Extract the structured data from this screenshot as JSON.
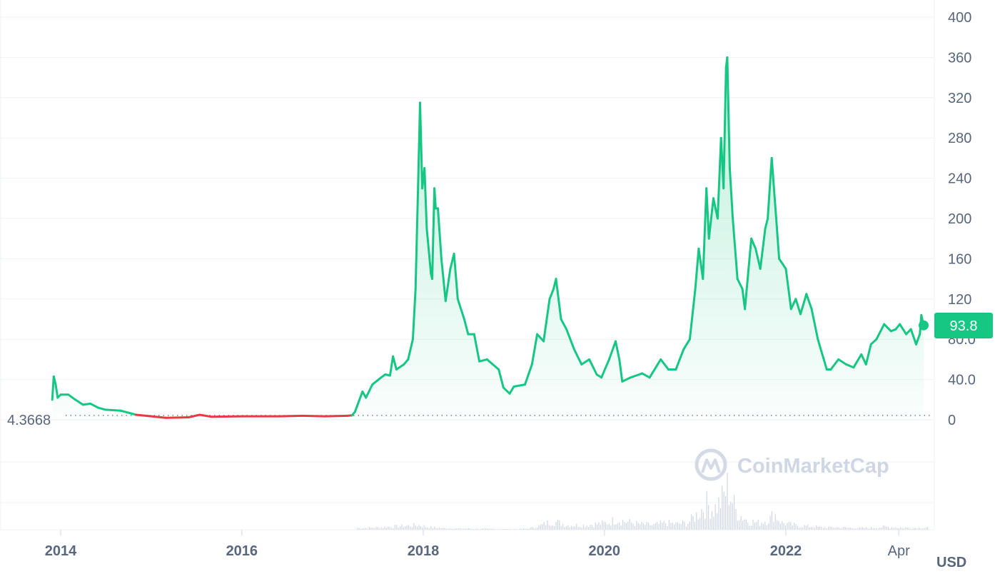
{
  "chart_data": {
    "type": "area",
    "y_unit": "USD",
    "ylim": [
      0,
      400
    ],
    "y_ticks": [
      "0",
      "40.0",
      "80.0",
      "120",
      "160",
      "200",
      "240",
      "280",
      "320",
      "360",
      "400"
    ],
    "x_ticks": [
      "2014",
      "2016",
      "2018",
      "2020",
      "2022",
      "Apr"
    ],
    "grid": true,
    "current_price_label": "93.8",
    "current_price": 93.8,
    "baseline_label": "4.3668",
    "baseline_value": 4.3668,
    "watermark": "CoinMarketCap",
    "colors": {
      "up_line": "#16c784",
      "down_line": "#ea3943",
      "area_top": "#16c784",
      "volume_bar": "#cfd6e4",
      "grid": "#eff2f5",
      "axis_text": "#58667e"
    },
    "price_series": [
      [
        "2013-11-28",
        20
      ],
      [
        "2013-12-04",
        43
      ],
      [
        "2013-12-12",
        35
      ],
      [
        "2013-12-20",
        22
      ],
      [
        "2014-01-01",
        25
      ],
      [
        "2014-02-01",
        25
      ],
      [
        "2014-03-01",
        20
      ],
      [
        "2014-04-01",
        15
      ],
      [
        "2014-05-01",
        16
      ],
      [
        "2014-06-01",
        12
      ],
      [
        "2014-07-01",
        10
      ],
      [
        "2014-09-01",
        9
      ],
      [
        "2014-11-01",
        5
      ],
      [
        "2015-01-01",
        3.5
      ],
      [
        "2015-03-01",
        2
      ],
      [
        "2015-06-01",
        2.5
      ],
      [
        "2015-07-15",
        5
      ],
      [
        "2015-09-01",
        3
      ],
      [
        "2016-01-01",
        3.5
      ],
      [
        "2016-06-01",
        3.5
      ],
      [
        "2016-09-01",
        4
      ],
      [
        "2016-12-01",
        3.5
      ],
      [
        "2017-03-01",
        4
      ],
      [
        "2017-03-20",
        4.4
      ],
      [
        "2017-04-01",
        8
      ],
      [
        "2017-05-01",
        28
      ],
      [
        "2017-05-15",
        22
      ],
      [
        "2017-06-10",
        35
      ],
      [
        "2017-07-15",
        42
      ],
      [
        "2017-08-01",
        45
      ],
      [
        "2017-08-20",
        44
      ],
      [
        "2017-09-01",
        63
      ],
      [
        "2017-09-15",
        50
      ],
      [
        "2017-10-15",
        55
      ],
      [
        "2017-11-01",
        60
      ],
      [
        "2017-11-20",
        80
      ],
      [
        "2017-12-01",
        130
      ],
      [
        "2017-12-12",
        240
      ],
      [
        "2017-12-19",
        315
      ],
      [
        "2017-12-28",
        230
      ],
      [
        "2018-01-06",
        250
      ],
      [
        "2018-01-15",
        190
      ],
      [
        "2018-02-01",
        145
      ],
      [
        "2018-02-06",
        140
      ],
      [
        "2018-02-15",
        230
      ],
      [
        "2018-02-20",
        210
      ],
      [
        "2018-03-01",
        210
      ],
      [
        "2018-03-15",
        160
      ],
      [
        "2018-04-01",
        118
      ],
      [
        "2018-04-20",
        150
      ],
      [
        "2018-05-05",
        165
      ],
      [
        "2018-05-20",
        120
      ],
      [
        "2018-06-15",
        100
      ],
      [
        "2018-07-01",
        85
      ],
      [
        "2018-07-25",
        85
      ],
      [
        "2018-08-15",
        58
      ],
      [
        "2018-09-15",
        60
      ],
      [
        "2018-11-01",
        50
      ],
      [
        "2018-11-20",
        32
      ],
      [
        "2018-12-15",
        26
      ],
      [
        "2019-01-01",
        33
      ],
      [
        "2019-02-15",
        35
      ],
      [
        "2019-03-15",
        55
      ],
      [
        "2019-04-05",
        85
      ],
      [
        "2019-05-01",
        78
      ],
      [
        "2019-05-25",
        120
      ],
      [
        "2019-06-10",
        130
      ],
      [
        "2019-06-20",
        140
      ],
      [
        "2019-07-10",
        100
      ],
      [
        "2019-08-01",
        90
      ],
      [
        "2019-09-01",
        70
      ],
      [
        "2019-10-01",
        55
      ],
      [
        "2019-11-01",
        60
      ],
      [
        "2019-12-01",
        45
      ],
      [
        "2019-12-20",
        42
      ],
      [
        "2020-01-20",
        60
      ],
      [
        "2020-02-15",
        78
      ],
      [
        "2020-03-01",
        60
      ],
      [
        "2020-03-13",
        38
      ],
      [
        "2020-04-15",
        42
      ],
      [
        "2020-06-01",
        46
      ],
      [
        "2020-07-01",
        42
      ],
      [
        "2020-08-15",
        60
      ],
      [
        "2020-09-15",
        50
      ],
      [
        "2020-10-15",
        50
      ],
      [
        "2020-11-15",
        70
      ],
      [
        "2020-12-10",
        80
      ],
      [
        "2021-01-01",
        130
      ],
      [
        "2021-01-15",
        170
      ],
      [
        "2021-02-01",
        140
      ],
      [
        "2021-02-15",
        230
      ],
      [
        "2021-02-25",
        180
      ],
      [
        "2021-03-15",
        220
      ],
      [
        "2021-04-01",
        200
      ],
      [
        "2021-04-15",
        280
      ],
      [
        "2021-04-25",
        230
      ],
      [
        "2021-05-05",
        350
      ],
      [
        "2021-05-10",
        360
      ],
      [
        "2021-05-20",
        250
      ],
      [
        "2021-06-01",
        200
      ],
      [
        "2021-06-20",
        140
      ],
      [
        "2021-07-10",
        130
      ],
      [
        "2021-07-20",
        110
      ],
      [
        "2021-08-15",
        180
      ],
      [
        "2021-09-01",
        170
      ],
      [
        "2021-09-20",
        150
      ],
      [
        "2021-10-10",
        190
      ],
      [
        "2021-10-20",
        200
      ],
      [
        "2021-11-05",
        260
      ],
      [
        "2021-11-20",
        210
      ],
      [
        "2021-12-05",
        160
      ],
      [
        "2022-01-01",
        150
      ],
      [
        "2022-01-22",
        110
      ],
      [
        "2022-02-10",
        120
      ],
      [
        "2022-03-01",
        105
      ],
      [
        "2022-03-25",
        125
      ],
      [
        "2022-04-15",
        110
      ],
      [
        "2022-05-10",
        80
      ],
      [
        "2022-06-15",
        50
      ],
      [
        "2022-07-01",
        50
      ],
      [
        "2022-08-01",
        60
      ],
      [
        "2022-09-01",
        55
      ],
      [
        "2022-10-01",
        52
      ],
      [
        "2022-11-01",
        65
      ],
      [
        "2022-11-20",
        55
      ],
      [
        "2022-12-10",
        75
      ],
      [
        "2023-01-01",
        80
      ],
      [
        "2023-02-01",
        95
      ],
      [
        "2023-03-01",
        88
      ],
      [
        "2023-03-20",
        90
      ],
      [
        "2023-04-05",
        95
      ],
      [
        "2023-05-01",
        85
      ],
      [
        "2023-05-20",
        90
      ],
      [
        "2023-06-10",
        75
      ],
      [
        "2023-06-25",
        85
      ],
      [
        "2023-07-01",
        104
      ],
      [
        "2023-07-10",
        93.8
      ]
    ],
    "volume_series": [
      [
        "2017-05-15",
        3
      ],
      [
        "2017-12-15",
        8
      ],
      [
        "2018-01-15",
        5
      ],
      [
        "2018-03-01",
        3
      ],
      [
        "2018-06-01",
        2
      ],
      [
        "2019-01-01",
        1
      ],
      [
        "2019-03-01",
        2
      ],
      [
        "2019-04-15",
        7
      ],
      [
        "2019-06-01",
        15
      ],
      [
        "2019-07-01",
        12
      ],
      [
        "2019-08-01",
        8
      ],
      [
        "2019-10-01",
        8
      ],
      [
        "2019-12-01",
        10
      ],
      [
        "2020-01-15",
        12
      ],
      [
        "2020-02-15",
        18
      ],
      [
        "2020-03-15",
        15
      ],
      [
        "2020-05-15",
        10
      ],
      [
        "2020-07-15",
        8
      ],
      [
        "2020-09-01",
        12
      ],
      [
        "2020-10-15",
        10
      ],
      [
        "2020-12-01",
        12
      ],
      [
        "2021-01-15",
        30
      ],
      [
        "2021-02-15",
        45
      ],
      [
        "2021-03-15",
        35
      ],
      [
        "2021-04-15",
        50
      ],
      [
        "2021-05-10",
        75
      ],
      [
        "2021-06-15",
        30
      ],
      [
        "2021-08-01",
        15
      ],
      [
        "2021-09-15",
        12
      ],
      [
        "2021-11-01",
        20
      ],
      [
        "2021-11-10",
        30
      ],
      [
        "2021-12-15",
        12
      ],
      [
        "2022-02-01",
        8
      ],
      [
        "2022-04-01",
        6
      ],
      [
        "2022-06-01",
        4
      ],
      [
        "2022-08-01",
        4
      ],
      [
        "2022-10-01",
        3
      ],
      [
        "2022-12-01",
        3
      ],
      [
        "2023-02-01",
        5
      ],
      [
        "2023-04-01",
        4
      ],
      [
        "2023-06-01",
        3
      ],
      [
        "2023-07-01",
        4
      ]
    ]
  }
}
